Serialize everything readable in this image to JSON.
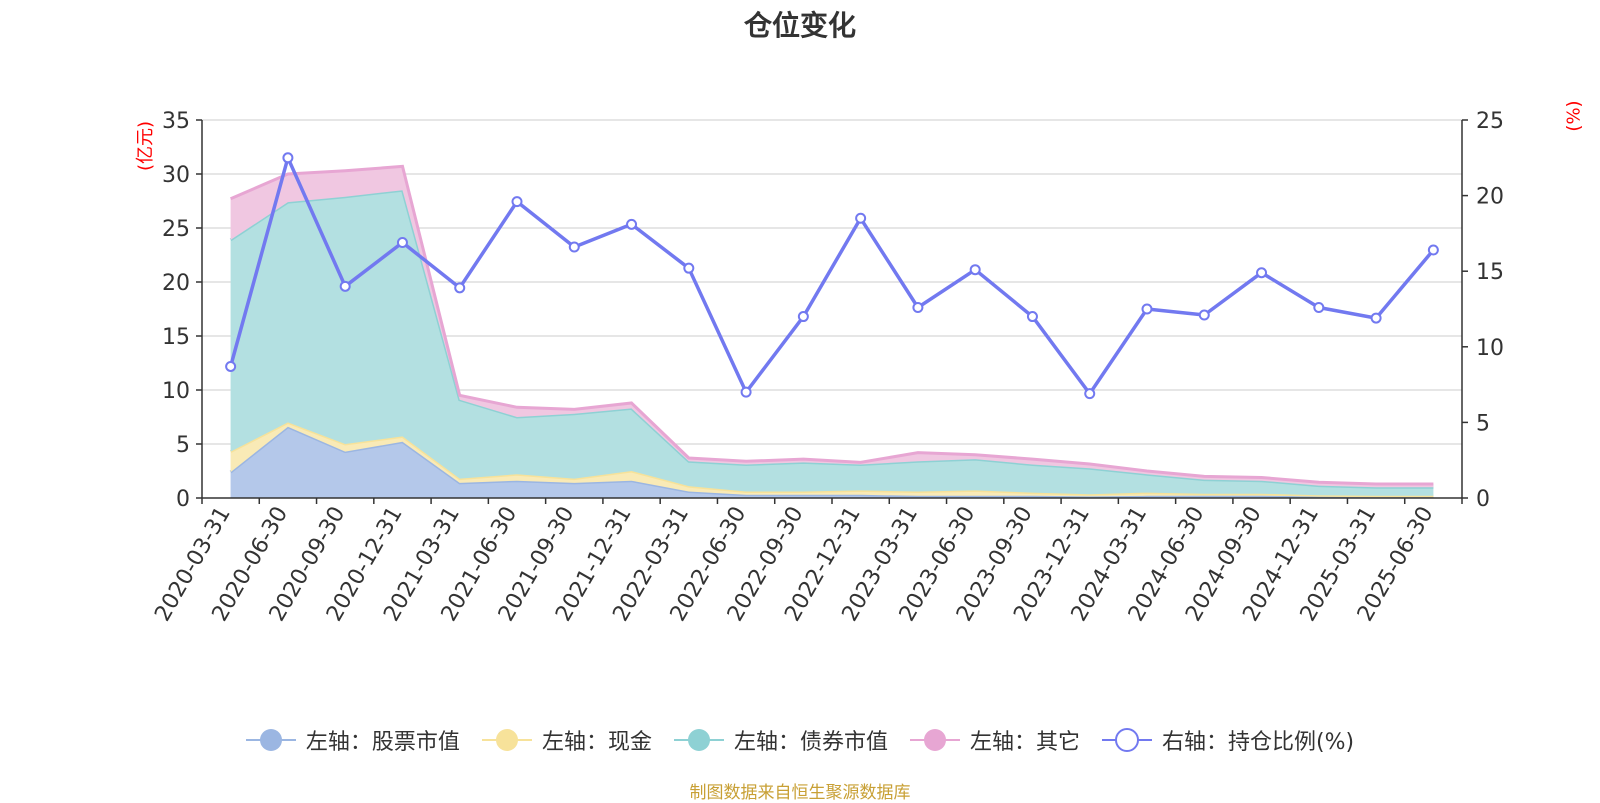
{
  "title": "仓位变化",
  "left_unit": "(亿元)",
  "right_unit": "(%)",
  "source": "制图数据来自恒生聚源数据库",
  "chart_data": {
    "type": "area",
    "categories": [
      "2020-03-31",
      "2020-06-30",
      "2020-09-30",
      "2020-12-31",
      "2021-03-31",
      "2021-06-30",
      "2021-09-30",
      "2021-12-31",
      "2022-03-31",
      "2022-06-30",
      "2022-09-30",
      "2022-12-31",
      "2023-03-31",
      "2023-06-30",
      "2023-09-30",
      "2023-12-31",
      "2024-03-31",
      "2024-06-30",
      "2024-09-30",
      "2024-12-31",
      "2025-03-31",
      "2025-06-30"
    ],
    "left_axis": {
      "min": 0,
      "max": 35,
      "ticks": [
        0,
        5,
        10,
        15,
        20,
        25,
        30,
        35
      ]
    },
    "right_axis": {
      "min": 0,
      "max": 25,
      "ticks": [
        0,
        5,
        10,
        15,
        20,
        25
      ]
    },
    "grid": true,
    "legend_position": "bottom",
    "series": [
      {
        "name": "左轴：股票市值",
        "kind": "stacked-area",
        "axis": "left",
        "color": "#9bb6e2",
        "fill": "#b4c8ea",
        "values": [
          2.4,
          6.6,
          4.3,
          5.2,
          1.4,
          1.6,
          1.4,
          1.6,
          0.6,
          0.3,
          0.3,
          0.3,
          0.2,
          0.2,
          0.2,
          0.15,
          0.2,
          0.2,
          0.2,
          0.15,
          0.1,
          0.1
        ]
      },
      {
        "name": "左轴：现金",
        "kind": "stacked-area",
        "axis": "left",
        "color": "#f7e29a",
        "fill": "#f9eab6",
        "values": [
          1.9,
          0.4,
          0.7,
          0.5,
          0.4,
          0.6,
          0.4,
          0.9,
          0.5,
          0.3,
          0.3,
          0.4,
          0.4,
          0.5,
          0.3,
          0.2,
          0.3,
          0.2,
          0.2,
          0.1,
          0.1,
          0.1
        ]
      },
      {
        "name": "左轴：债券市值",
        "kind": "stacked-area",
        "axis": "left",
        "color": "#8ed1d4",
        "fill": "#b3e0e1",
        "values": [
          19.6,
          20.4,
          22.9,
          22.8,
          7.3,
          5.3,
          6.0,
          5.8,
          2.3,
          2.5,
          2.7,
          2.4,
          2.8,
          2.9,
          2.6,
          2.4,
          1.7,
          1.3,
          1.2,
          0.9,
          0.8,
          0.8
        ]
      },
      {
        "name": "左轴：其它",
        "kind": "stacked-area",
        "axis": "left",
        "color": "#e7a6d3",
        "fill": "#f0c7e1",
        "values": [
          3.8,
          2.6,
          2.4,
          2.2,
          0.4,
          0.9,
          0.4,
          0.5,
          0.3,
          0.3,
          0.3,
          0.2,
          0.8,
          0.4,
          0.5,
          0.4,
          0.3,
          0.3,
          0.3,
          0.3,
          0.3,
          0.3
        ]
      },
      {
        "name": "右轴：持仓比例(%)",
        "kind": "line",
        "axis": "right",
        "color": "#7279f0",
        "values": [
          8.7,
          22.5,
          14.0,
          16.9,
          13.9,
          19.6,
          16.6,
          18.1,
          15.2,
          7.0,
          12.0,
          18.5,
          12.6,
          15.1,
          12.0,
          6.9,
          12.5,
          12.1,
          14.9,
          12.6,
          11.9,
          16.4
        ]
      }
    ]
  }
}
